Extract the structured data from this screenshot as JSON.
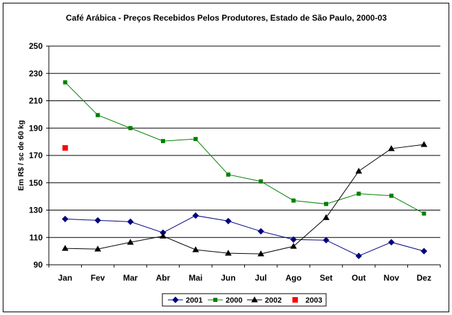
{
  "chart_data": {
    "type": "line",
    "title": "Café Arábica - Preços Recebidos Pelos Produtores, Estado de São Paulo, 2000-03",
    "xlabel": "",
    "ylabel": "Em R$ / sc de 60 kg",
    "ylim": [
      90,
      250
    ],
    "yticks": [
      "250",
      "230",
      "210",
      "190",
      "170",
      "150",
      "130",
      "110",
      "90"
    ],
    "grid": true,
    "legend_position": "bottom",
    "categories": [
      "Jan",
      "Fev",
      "Mar",
      "Abr",
      "Mai",
      "Jun",
      "Jul",
      "Ago",
      "Set",
      "Out",
      "Nov",
      "Dez"
    ],
    "series": [
      {
        "name": "2001",
        "color": "#000080",
        "marker": "diamond",
        "values": [
          123.5,
          122.5,
          121.5,
          113.5,
          126,
          122,
          114.5,
          108.5,
          108,
          96.5,
          106.5,
          100
        ]
      },
      {
        "name": "2000",
        "color": "#008000",
        "marker": "square",
        "values": [
          223.5,
          199.5,
          190,
          180.5,
          182,
          156,
          151,
          137,
          134.5,
          142,
          140.5,
          127.5
        ]
      },
      {
        "name": "2002",
        "color": "#000000",
        "marker": "triangle",
        "values": [
          102,
          101.5,
          106.5,
          111,
          101,
          98.5,
          98,
          103.5,
          124.5,
          158.5,
          175,
          178
        ]
      },
      {
        "name": "2003",
        "color": "#ff0000",
        "marker": "square",
        "values": [
          175.5,
          null,
          null,
          null,
          null,
          null,
          null,
          null,
          null,
          null,
          null,
          null
        ]
      }
    ]
  }
}
